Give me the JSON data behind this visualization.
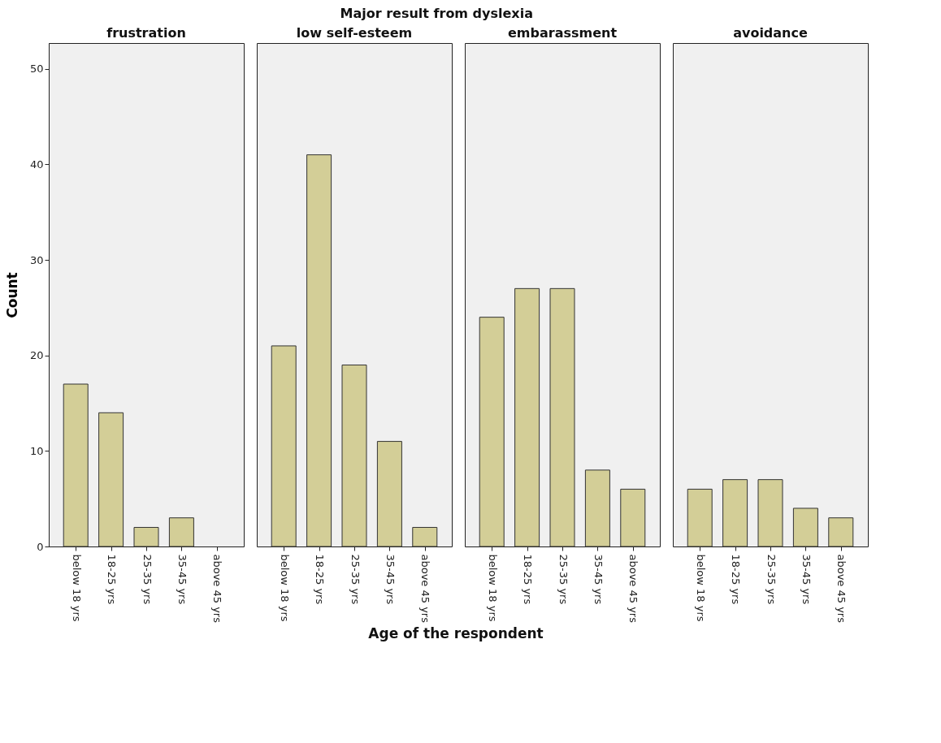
{
  "chart_data": [
    {
      "type": "bar",
      "title": "frustration",
      "categories": [
        "below 18 yrs",
        "18-25 yrs",
        "25-35 yrs",
        "35-45 yrs",
        "above 45 yrs"
      ],
      "values": [
        17,
        14,
        2,
        3,
        null
      ],
      "color": "#d3ce97",
      "ylim": [
        0,
        52.7
      ],
      "yticks": [
        0,
        10,
        20,
        30,
        40,
        50
      ],
      "ylabel": "Count",
      "annotations": [
        "Major result from dyslexia",
        "Age of the respondent"
      ],
      "grid": false
    },
    {
      "type": "bar",
      "title": "low self-esteem",
      "categories": [
        "below 18 yrs",
        "18-25 yrs",
        "25-35 yrs",
        "35-45 yrs",
        "above 45 yrs"
      ],
      "values": [
        21,
        41,
        19,
        11,
        2
      ],
      "color": "#d3ce97",
      "ylim": [
        0,
        52.7
      ],
      "tick_labels": "x",
      "grid": false
    },
    {
      "type": "bar",
      "title": "embarassment",
      "categories": [
        "below 18 yrs",
        "18-25 yrs",
        "25-35 yrs",
        "35-45 yrs",
        "above 45 yrs"
      ],
      "values": [
        24,
        27,
        27,
        8,
        6
      ],
      "color": "#d3ce97",
      "ylim": [
        0,
        52.7
      ],
      "tick_labels": "x",
      "grid": false
    },
    {
      "type": "bar",
      "title": "avoidance",
      "categories": [
        "below 18 yrs",
        "18-25 yrs",
        "25-35 yrs",
        "35-45 yrs",
        "above 45 yrs"
      ],
      "values": [
        6,
        7,
        7,
        4,
        3
      ],
      "color": "#d3ce97",
      "ylim": [
        0,
        52.7
      ],
      "tick_labels": "x",
      "grid": false
    }
  ]
}
